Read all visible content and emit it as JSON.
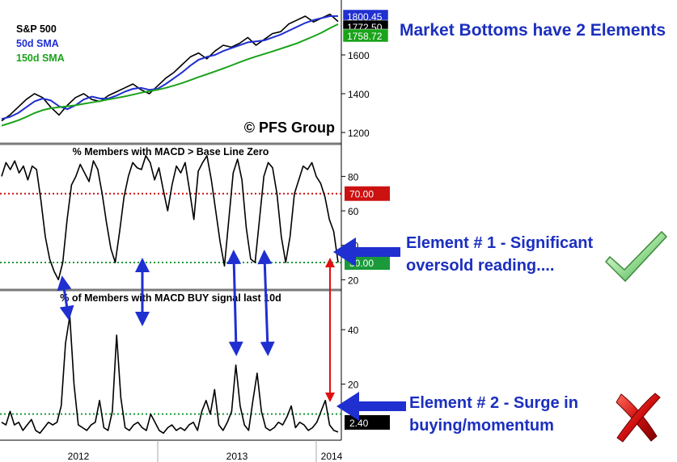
{
  "chart_data": [
    {
      "type": "line",
      "panel": "top",
      "ylim": [
        1150,
        1850
      ],
      "yticks": [
        1200,
        1400,
        1600
      ],
      "legend": [
        {
          "label": "S&P 500",
          "color": "#000000"
        },
        {
          "label": "50d SMA",
          "color": "#1f2fd0"
        },
        {
          "label": "150d SMA",
          "color": "#1aa31a"
        }
      ],
      "watermark": "© PFS Group",
      "last_value_tags": [
        {
          "value": 1800.45,
          "label": "1800.45",
          "color": "#1f2fd0"
        },
        {
          "value": 1772.5,
          "label": "1772.50",
          "color": "#000000"
        },
        {
          "value": 1758.72,
          "label": "1758.72",
          "color": "#1aa31a"
        }
      ],
      "series": [
        {
          "name": "S&P 500",
          "color": "#000000",
          "values": [
            1260,
            1290,
            1330,
            1370,
            1400,
            1380,
            1330,
            1290,
            1340,
            1380,
            1400,
            1370,
            1360,
            1390,
            1410,
            1430,
            1450,
            1420,
            1400,
            1440,
            1480,
            1510,
            1550,
            1590,
            1610,
            1580,
            1620,
            1650,
            1640,
            1660,
            1690,
            1650,
            1680,
            1710,
            1720,
            1760,
            1780,
            1800,
            1770,
            1790,
            1810,
            1772.5
          ]
        },
        {
          "name": "50d SMA",
          "color": "#1f2fd0",
          "values": [
            1270,
            1280,
            1300,
            1330,
            1360,
            1375,
            1365,
            1335,
            1320,
            1340,
            1370,
            1385,
            1375,
            1375,
            1390,
            1410,
            1425,
            1430,
            1420,
            1425,
            1450,
            1480,
            1510,
            1545,
            1575,
            1590,
            1600,
            1620,
            1635,
            1650,
            1665,
            1670,
            1675,
            1690,
            1705,
            1725,
            1745,
            1765,
            1780,
            1790,
            1800,
            1800.45
          ]
        },
        {
          "name": "150d SMA",
          "color": "#1aa31a",
          "values": [
            1235,
            1248,
            1262,
            1280,
            1300,
            1315,
            1325,
            1330,
            1335,
            1340,
            1348,
            1355,
            1362,
            1370,
            1378,
            1386,
            1395,
            1405,
            1413,
            1420,
            1430,
            1442,
            1455,
            1470,
            1486,
            1500,
            1515,
            1530,
            1546,
            1562,
            1578,
            1592,
            1605,
            1618,
            1632,
            1646,
            1660,
            1678,
            1696,
            1715,
            1738,
            1758.72
          ]
        }
      ]
    },
    {
      "type": "line",
      "panel": "middle",
      "title": "% Members with MACD > Base Line Zero",
      "ylim": [
        15,
        98
      ],
      "yticks": [
        20,
        40,
        60,
        80
      ],
      "reference_lines": [
        {
          "value": 70,
          "label": "70.00",
          "color": "#cc1111"
        },
        {
          "value": 30,
          "label": "30.00",
          "color": "#1a9a3a"
        }
      ],
      "series": [
        {
          "name": "",
          "color": "#000000",
          "values": [
            80,
            88,
            84,
            89,
            82,
            86,
            78,
            86,
            84,
            66,
            45,
            32,
            25,
            20,
            30,
            55,
            75,
            80,
            87,
            82,
            77,
            89,
            84,
            70,
            53,
            38,
            30,
            48,
            68,
            80,
            88,
            85,
            84,
            92,
            88,
            78,
            85,
            72,
            60,
            75,
            86,
            82,
            88,
            72,
            55,
            83,
            88,
            92,
            78,
            60,
            42,
            28,
            55,
            82,
            90,
            78,
            50,
            32,
            30,
            55,
            80,
            88,
            85,
            70,
            45,
            30,
            45,
            70,
            78,
            86,
            84,
            88,
            80,
            76,
            68,
            55,
            48,
            30
          ]
        }
      ]
    },
    {
      "type": "line",
      "panel": "bottom",
      "title": "% of Members with MACD BUY signal last 10d",
      "ylim": [
        0,
        54
      ],
      "yticks": [
        20,
        40
      ],
      "reference_lines": [
        {
          "value": 9,
          "label": "",
          "color": "#1a9a3a"
        }
      ],
      "last_value_tag": {
        "value": 2.4,
        "label": "2.40"
      },
      "series": [
        {
          "name": "",
          "color": "#000000",
          "values": [
            6,
            5,
            10,
            5,
            6,
            3,
            5,
            7,
            3,
            2,
            4,
            6,
            5,
            6,
            12,
            35,
            45,
            20,
            5,
            4,
            3,
            5,
            6,
            14,
            4,
            3,
            10,
            38,
            15,
            4,
            3,
            5,
            6,
            4,
            3,
            9,
            6,
            3,
            2,
            4,
            5,
            3,
            4,
            3,
            5,
            6,
            3,
            10,
            14,
            9,
            18,
            5,
            3,
            6,
            10,
            27,
            12,
            5,
            3,
            14,
            24,
            10,
            4,
            3,
            4,
            6,
            5,
            8,
            12,
            4,
            6,
            5,
            3,
            4,
            6,
            10,
            14,
            5,
            3,
            2.4
          ]
        }
      ]
    },
    {
      "type": "x-axis",
      "x_labels": [
        "2012",
        "2013",
        "2014"
      ]
    }
  ],
  "annotations": {
    "headline": "Market Bottoms have 2 Elements",
    "element1_line1": "Element # 1 - Significant",
    "element1_line2": "oversold reading....",
    "element2_line1": "Element # 2 - Surge in",
    "element2_line2": "buying/momentum",
    "check_icon": "checkmark-icon",
    "cross_icon": "x-mark-icon"
  }
}
